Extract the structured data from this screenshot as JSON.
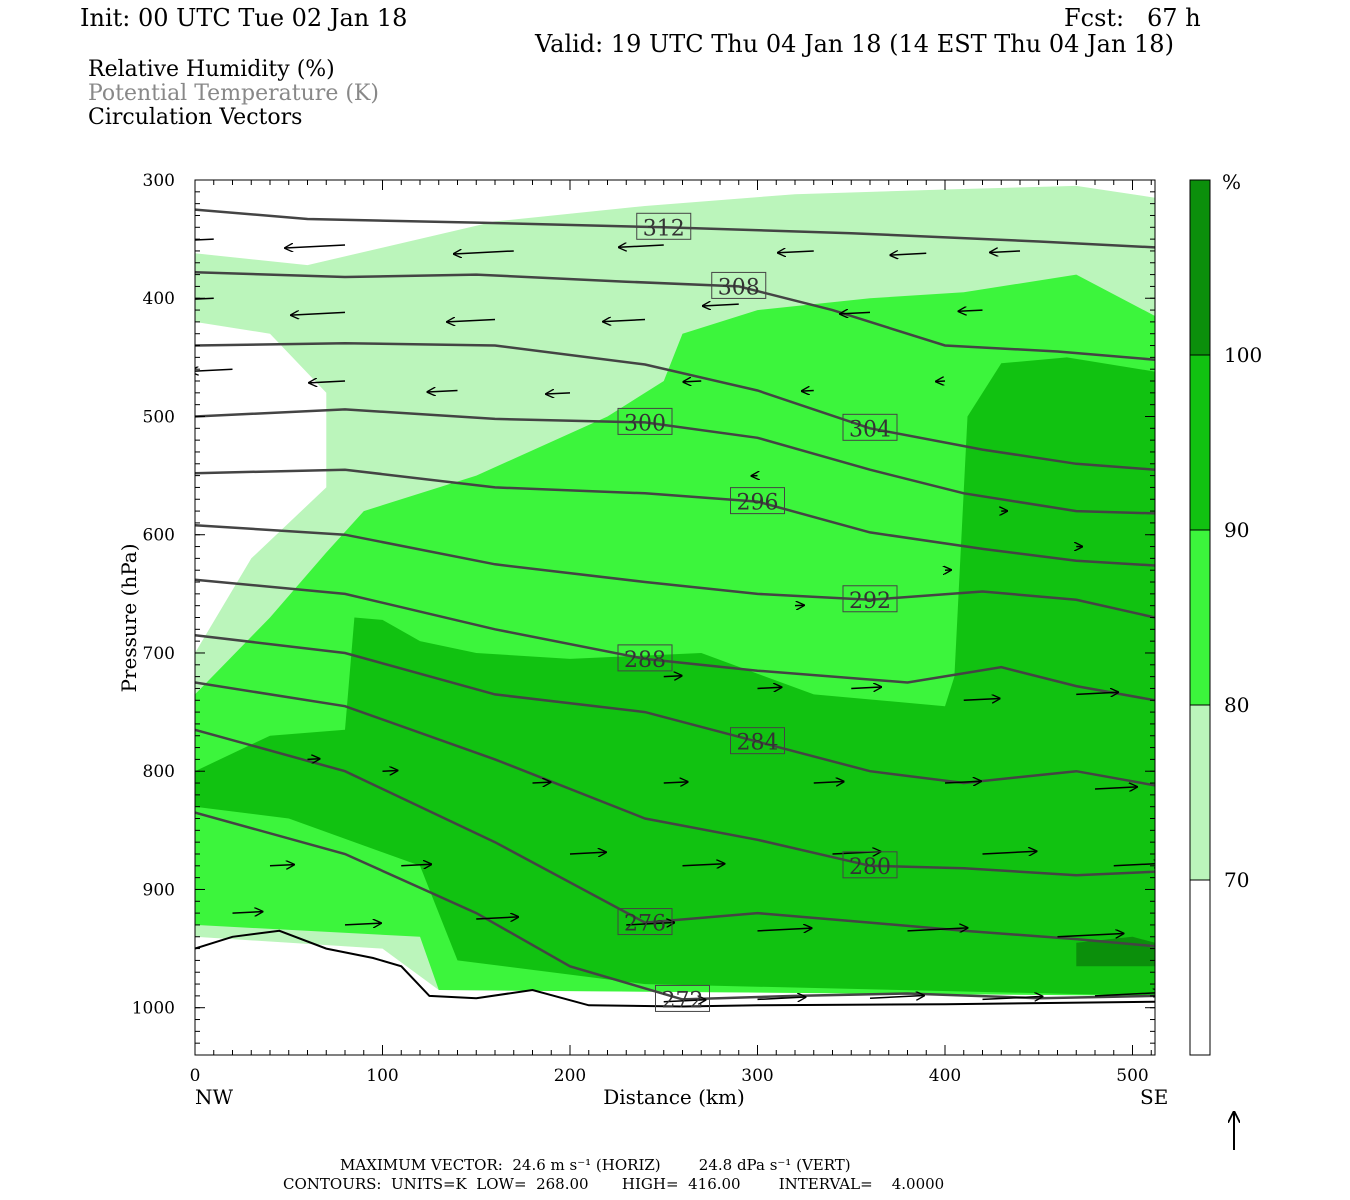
{
  "header": {
    "init": "Init: 00 UTC Tue 02 Jan 18",
    "fcst": "Fcst:   67 h",
    "valid": "Valid: 19 UTC Thu 04 Jan 18 (14 EST Thu 04 Jan 18)"
  },
  "legend_text": {
    "rh": "Relative Humidity (%)",
    "theta": "Potential Temperature (K)",
    "vectors": "Circulation Vectors"
  },
  "footer": {
    "max_vector": "MAXIMUM VECTOR:  24.6 m s⁻¹ (HORIZ)        24.8 dPa s⁻¹ (VERT)",
    "contours": "CONTOURS:  UNITS=K  LOW=  268.00       HIGH=  416.00        INTERVAL=    4.0000"
  },
  "colors": {
    "rh_70_80": "#bbf5bb",
    "rh_80_90": "#3cf53c",
    "rh_90_100": "#11c211",
    "rh_100": "#0b8f0b",
    "theta_contour": "#444444"
  },
  "chart_data": {
    "type": "cross-section",
    "xlabel": "Distance (km)",
    "ylabel": "Pressure (hPa)",
    "xlim": [
      0,
      512
    ],
    "ylim": [
      1040,
      300
    ],
    "x_ticks": [
      0,
      100,
      200,
      300,
      400,
      500
    ],
    "y_ticks": [
      300,
      400,
      500,
      600,
      700,
      800,
      900,
      1000
    ],
    "x_end_labels": {
      "left": "NW",
      "right": "SE"
    },
    "colorbar": {
      "unit": "%",
      "levels": [
        70,
        80,
        90,
        100
      ],
      "labels": [
        "70",
        "80",
        "90",
        "100"
      ]
    },
    "theta_contours": [
      {
        "label": "312",
        "points": [
          [
            0,
            325
          ],
          [
            60,
            333
          ],
          [
            150,
            336
          ],
          [
            250,
            340
          ],
          [
            350,
            345
          ],
          [
            450,
            352
          ],
          [
            512,
            357
          ]
        ]
      },
      {
        "label": "308",
        "points": [
          [
            0,
            378
          ],
          [
            80,
            382
          ],
          [
            150,
            380
          ],
          [
            230,
            386
          ],
          [
            290,
            390
          ],
          [
            340,
            410
          ],
          [
            400,
            440
          ],
          [
            460,
            445
          ],
          [
            512,
            452
          ]
        ]
      },
      {
        "label": "304",
        "points": [
          [
            0,
            440
          ],
          [
            80,
            438
          ],
          [
            160,
            440
          ],
          [
            240,
            456
          ],
          [
            300,
            478
          ],
          [
            360,
            510
          ],
          [
            420,
            528
          ],
          [
            470,
            540
          ],
          [
            512,
            545
          ]
        ]
      },
      {
        "label": "300",
        "points": [
          [
            0,
            500
          ],
          [
            80,
            494
          ],
          [
            160,
            502
          ],
          [
            240,
            505
          ],
          [
            300,
            518
          ],
          [
            360,
            545
          ],
          [
            410,
            565
          ],
          [
            470,
            580
          ],
          [
            512,
            582
          ]
        ]
      },
      {
        "label": "296",
        "points": [
          [
            0,
            548
          ],
          [
            80,
            545
          ],
          [
            160,
            560
          ],
          [
            240,
            565
          ],
          [
            300,
            572
          ],
          [
            360,
            598
          ],
          [
            420,
            612
          ],
          [
            470,
            622
          ],
          [
            512,
            626
          ]
        ]
      },
      {
        "label": "292",
        "points": [
          [
            0,
            592
          ],
          [
            80,
            600
          ],
          [
            160,
            625
          ],
          [
            240,
            640
          ],
          [
            300,
            650
          ],
          [
            360,
            655
          ],
          [
            420,
            648
          ],
          [
            470,
            655
          ],
          [
            512,
            670
          ]
        ]
      },
      {
        "label": "288",
        "points": [
          [
            0,
            638
          ],
          [
            80,
            650
          ],
          [
            160,
            680
          ],
          [
            240,
            705
          ],
          [
            300,
            715
          ],
          [
            380,
            725
          ],
          [
            430,
            712
          ],
          [
            470,
            728
          ],
          [
            512,
            740
          ]
        ]
      },
      {
        "label": "284",
        "points": [
          [
            0,
            685
          ],
          [
            80,
            700
          ],
          [
            160,
            735
          ],
          [
            240,
            750
          ],
          [
            300,
            775
          ],
          [
            360,
            800
          ],
          [
            410,
            810
          ],
          [
            470,
            800
          ],
          [
            512,
            812
          ]
        ]
      },
      {
        "label": "280",
        "points": [
          [
            0,
            725
          ],
          [
            80,
            745
          ],
          [
            160,
            790
          ],
          [
            240,
            840
          ],
          [
            300,
            858
          ],
          [
            360,
            880
          ],
          [
            410,
            882
          ],
          [
            470,
            888
          ],
          [
            512,
            885
          ]
        ]
      },
      {
        "label": "276",
        "points": [
          [
            0,
            765
          ],
          [
            80,
            800
          ],
          [
            160,
            860
          ],
          [
            240,
            928
          ],
          [
            300,
            920
          ],
          [
            360,
            928
          ],
          [
            410,
            935
          ],
          [
            470,
            942
          ],
          [
            512,
            948
          ]
        ]
      },
      {
        "label": "272",
        "points": [
          [
            0,
            835
          ],
          [
            80,
            870
          ],
          [
            150,
            920
          ],
          [
            200,
            965
          ],
          [
            260,
            993
          ],
          [
            320,
            990
          ],
          [
            380,
            988
          ],
          [
            450,
            992
          ],
          [
            512,
            990
          ]
        ]
      }
    ],
    "rh_regions": [
      {
        "level": 70,
        "polygon": [
          [
            0,
            362
          ],
          [
            60,
            372
          ],
          [
            160,
            335
          ],
          [
            240,
            322
          ],
          [
            320,
            312
          ],
          [
            400,
            308
          ],
          [
            470,
            305
          ],
          [
            512,
            315
          ],
          [
            512,
            990
          ],
          [
            130,
            985
          ],
          [
            100,
            950
          ],
          [
            0,
            940
          ],
          [
            0,
            700
          ],
          [
            30,
            620
          ],
          [
            70,
            560
          ],
          [
            70,
            480
          ],
          [
            40,
            430
          ],
          [
            0,
            420
          ]
        ]
      },
      {
        "level": 80,
        "polygon": [
          [
            0,
            735
          ],
          [
            40,
            670
          ],
          [
            70,
            615
          ],
          [
            90,
            580
          ],
          [
            150,
            550
          ],
          [
            220,
            500
          ],
          [
            250,
            470
          ],
          [
            260,
            430
          ],
          [
            300,
            410
          ],
          [
            360,
            400
          ],
          [
            410,
            395
          ],
          [
            470,
            380
          ],
          [
            512,
            415
          ],
          [
            512,
            990
          ],
          [
            130,
            985
          ],
          [
            120,
            940
          ],
          [
            0,
            930
          ]
        ]
      },
      {
        "level": 90,
        "polygon": [
          [
            0,
            800
          ],
          [
            40,
            770
          ],
          [
            80,
            765
          ],
          [
            85,
            670
          ],
          [
            100,
            672
          ],
          [
            120,
            690
          ],
          [
            150,
            700
          ],
          [
            200,
            705
          ],
          [
            270,
            700
          ],
          [
            330,
            735
          ],
          [
            400,
            745
          ],
          [
            405,
            720
          ],
          [
            412,
            500
          ],
          [
            430,
            455
          ],
          [
            465,
            450
          ],
          [
            512,
            462
          ],
          [
            512,
            990
          ],
          [
            240,
            980
          ],
          [
            140,
            960
          ],
          [
            120,
            880
          ],
          [
            50,
            840
          ],
          [
            0,
            830
          ]
        ]
      },
      {
        "level": 100,
        "polygon": [
          [
            470,
            945
          ],
          [
            500,
            940
          ],
          [
            512,
            945
          ],
          [
            512,
            965
          ],
          [
            470,
            965
          ]
        ]
      }
    ],
    "vectors": [
      [
        10,
        350,
        -24
      ],
      [
        80,
        355,
        -20
      ],
      [
        170,
        360,
        -20
      ],
      [
        250,
        355,
        -15
      ],
      [
        330,
        360,
        -12
      ],
      [
        390,
        362,
        -12
      ],
      [
        440,
        360,
        -10
      ],
      [
        10,
        400,
        -22
      ],
      [
        80,
        412,
        -18
      ],
      [
        160,
        418,
        -16
      ],
      [
        240,
        418,
        -14
      ],
      [
        290,
        405,
        -12
      ],
      [
        360,
        412,
        -10
      ],
      [
        420,
        410,
        -8
      ],
      [
        20,
        460,
        -14
      ],
      [
        80,
        470,
        -12
      ],
      [
        140,
        478,
        -10
      ],
      [
        200,
        480,
        -8
      ],
      [
        270,
        470,
        -6
      ],
      [
        330,
        478,
        -4
      ],
      [
        400,
        470,
        -3
      ],
      [
        300,
        550,
        -2
      ],
      [
        320,
        660,
        3
      ],
      [
        400,
        630,
        2
      ],
      [
        430,
        580,
        1
      ],
      [
        470,
        610,
        0
      ],
      [
        250,
        720,
        6
      ],
      [
        300,
        730,
        8
      ],
      [
        350,
        730,
        10
      ],
      [
        410,
        740,
        12
      ],
      [
        470,
        735,
        14
      ],
      [
        60,
        790,
        4
      ],
      [
        100,
        800,
        5
      ],
      [
        180,
        810,
        6
      ],
      [
        250,
        810,
        8
      ],
      [
        330,
        810,
        10
      ],
      [
        400,
        810,
        12
      ],
      [
        480,
        815,
        14
      ],
      [
        40,
        880,
        8
      ],
      [
        110,
        880,
        10
      ],
      [
        200,
        870,
        12
      ],
      [
        260,
        880,
        14
      ],
      [
        340,
        870,
        16
      ],
      [
        420,
        870,
        18
      ],
      [
        490,
        880,
        16
      ],
      [
        20,
        920,
        10
      ],
      [
        80,
        930,
        12
      ],
      [
        150,
        925,
        14
      ],
      [
        230,
        930,
        16
      ],
      [
        300,
        935,
        18
      ],
      [
        380,
        935,
        20
      ],
      [
        460,
        940,
        22
      ],
      [
        250,
        995,
        14
      ],
      [
        300,
        993,
        16
      ],
      [
        360,
        992,
        18
      ],
      [
        420,
        993,
        20
      ],
      [
        480,
        990,
        22
      ]
    ]
  }
}
